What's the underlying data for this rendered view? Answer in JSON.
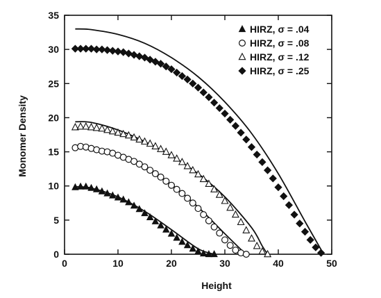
{
  "chart_data": {
    "type": "scatter",
    "title": "",
    "xlabel": "Height",
    "ylabel": "Monomer Density",
    "xlim": [
      0,
      50
    ],
    "ylim": [
      0,
      35
    ],
    "x_ticks": [
      0,
      10,
      20,
      30,
      40,
      50
    ],
    "y_ticks": [
      0,
      5,
      10,
      15,
      20,
      25,
      30,
      35
    ],
    "grid": false,
    "legend_position": "top-right",
    "series": [
      {
        "name": "HIRZ, σ = .04",
        "marker": "filled-triangle",
        "x": [
          2,
          3,
          4,
          5,
          6,
          7,
          8,
          9,
          10,
          11,
          12,
          13,
          14,
          15,
          16,
          17,
          18,
          19,
          20,
          21,
          22,
          23,
          24,
          25,
          26,
          27,
          28
        ],
        "y": [
          9.8,
          9.9,
          9.9,
          9.7,
          9.5,
          9.2,
          8.9,
          8.6,
          8.3,
          8.0,
          7.6,
          7.1,
          6.6,
          6.0,
          5.4,
          4.8,
          4.2,
          3.6,
          3.0,
          2.4,
          1.8,
          1.3,
          0.8,
          0.4,
          0.1,
          0.0,
          0.0
        ]
      },
      {
        "name": "HIRZ, σ = .08",
        "marker": "open-circle",
        "x": [
          2,
          3,
          4,
          5,
          6,
          7,
          8,
          9,
          10,
          11,
          12,
          13,
          14,
          15,
          16,
          17,
          18,
          19,
          20,
          21,
          22,
          23,
          24,
          25,
          26,
          27,
          28,
          29,
          30,
          31,
          32,
          33,
          34
        ],
        "y": [
          15.6,
          15.8,
          15.7,
          15.5,
          15.3,
          15.1,
          15.0,
          14.8,
          14.5,
          14.2,
          13.9,
          13.6,
          13.2,
          12.8,
          12.3,
          11.8,
          11.3,
          10.7,
          10.1,
          9.5,
          8.9,
          8.2,
          7.5,
          6.7,
          5.8,
          4.9,
          4.0,
          3.1,
          2.1,
          1.3,
          0.6,
          0.2,
          0.0
        ]
      },
      {
        "name": "HIRZ, σ = .12",
        "marker": "open-triangle",
        "x": [
          2,
          3,
          4,
          5,
          6,
          7,
          8,
          9,
          10,
          11,
          12,
          13,
          14,
          15,
          16,
          17,
          18,
          19,
          20,
          21,
          22,
          23,
          24,
          25,
          26,
          27,
          28,
          29,
          30,
          31,
          32,
          33,
          34,
          35,
          36,
          37,
          38
        ],
        "y": [
          18.6,
          18.7,
          18.7,
          18.6,
          18.5,
          18.4,
          18.2,
          18.0,
          17.8,
          17.6,
          17.4,
          17.1,
          16.8,
          16.5,
          16.2,
          15.8,
          15.4,
          15.0,
          14.5,
          14.0,
          13.5,
          12.9,
          12.3,
          11.7,
          11.0,
          10.3,
          9.5,
          8.7,
          7.8,
          6.8,
          5.8,
          4.7,
          3.5,
          2.3,
          1.2,
          0.4,
          0.0
        ]
      },
      {
        "name": "HIRZ, σ = .25",
        "marker": "filled-diamond",
        "x": [
          2,
          3,
          4,
          5,
          6,
          7,
          8,
          9,
          10,
          11,
          12,
          13,
          14,
          15,
          16,
          17,
          18,
          19,
          20,
          21,
          22,
          23,
          24,
          25,
          26,
          27,
          28,
          29,
          30,
          31,
          32,
          33,
          34,
          35,
          36,
          37,
          38,
          39,
          40,
          41,
          42,
          43,
          44,
          45,
          46,
          47,
          48
        ],
        "y": [
          30.1,
          30.1,
          30.1,
          30.1,
          30.0,
          30.0,
          29.9,
          29.8,
          29.7,
          29.6,
          29.4,
          29.2,
          29.0,
          28.8,
          28.5,
          28.2,
          27.9,
          27.5,
          27.1,
          26.6,
          26.1,
          25.6,
          25.0,
          24.4,
          23.7,
          23.0,
          22.2,
          21.4,
          20.6,
          19.7,
          18.8,
          17.8,
          16.8,
          15.7,
          14.6,
          13.5,
          12.3,
          11.1,
          9.8,
          8.5,
          7.2,
          5.8,
          4.5,
          3.3,
          2.1,
          1.0,
          0.2
        ]
      }
    ],
    "curves": [
      {
        "x": [
          2,
          5,
          10,
          15,
          20,
          25,
          28
        ],
        "y": [
          9.9,
          9.7,
          8.4,
          6.3,
          3.6,
          0.8,
          0.0
        ]
      },
      {
        "x": [
          2,
          5,
          10,
          15,
          20,
          25,
          30,
          33,
          34
        ],
        "y": [
          15.9,
          15.6,
          14.5,
          12.8,
          10.2,
          6.9,
          3.0,
          0.7,
          0.0
        ]
      },
      {
        "x": [
          2,
          5,
          10,
          15,
          20,
          25,
          30,
          35,
          37,
          38
        ],
        "y": [
          19.4,
          19.3,
          18.2,
          16.5,
          14.4,
          11.8,
          8.4,
          3.9,
          1.2,
          0.0
        ]
      },
      {
        "x": [
          2,
          5,
          10,
          15,
          20,
          25,
          30,
          35,
          40,
          45,
          48.5
        ],
        "y": [
          33.0,
          32.9,
          32.2,
          30.9,
          28.8,
          26.0,
          22.3,
          17.7,
          11.8,
          4.8,
          0.0
        ]
      }
    ],
    "colors": {
      "ink": "#111111",
      "background": "#ffffff"
    }
  }
}
